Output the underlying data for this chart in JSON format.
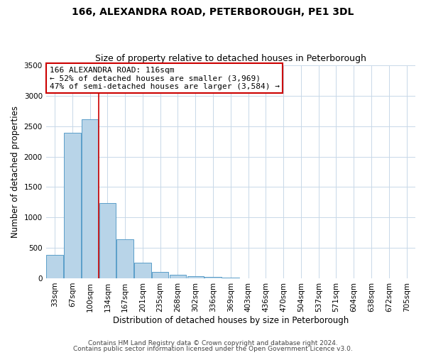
{
  "title": "166, ALEXANDRA ROAD, PETERBOROUGH, PE1 3DL",
  "subtitle": "Size of property relative to detached houses in Peterborough",
  "xlabel": "Distribution of detached houses by size in Peterborough",
  "ylabel": "Number of detached properties",
  "bar_labels": [
    "33sqm",
    "67sqm",
    "100sqm",
    "134sqm",
    "167sqm",
    "201sqm",
    "235sqm",
    "268sqm",
    "302sqm",
    "336sqm",
    "369sqm",
    "403sqm",
    "436sqm",
    "470sqm",
    "504sqm",
    "537sqm",
    "571sqm",
    "604sqm",
    "638sqm",
    "672sqm",
    "705sqm"
  ],
  "bar_values": [
    390,
    2390,
    2610,
    1240,
    640,
    260,
    100,
    55,
    30,
    18,
    10,
    5,
    2,
    1,
    0,
    0,
    0,
    0,
    0,
    0,
    0
  ],
  "bar_color": "#b8d4e8",
  "bar_edge_color": "#5a9ec9",
  "ylim": [
    0,
    3500
  ],
  "yticks": [
    0,
    500,
    1000,
    1500,
    2000,
    2500,
    3000,
    3500
  ],
  "vline_x": 2.5,
  "vline_color": "#cc0000",
  "annotation_title": "166 ALEXANDRA ROAD: 116sqm",
  "annotation_line1": "← 52% of detached houses are smaller (3,969)",
  "annotation_line2": "47% of semi-detached houses are larger (3,584) →",
  "annotation_box_color": "#ffffff",
  "annotation_box_edge": "#cc0000",
  "footnote1": "Contains HM Land Registry data © Crown copyright and database right 2024.",
  "footnote2": "Contains public sector information licensed under the Open Government Licence v3.0.",
  "background_color": "#ffffff",
  "grid_color": "#c8d8e8",
  "title_fontsize": 10,
  "subtitle_fontsize": 9,
  "axis_label_fontsize": 8.5,
  "tick_fontsize": 7.5,
  "annotation_fontsize": 8,
  "footnote_fontsize": 6.5
}
